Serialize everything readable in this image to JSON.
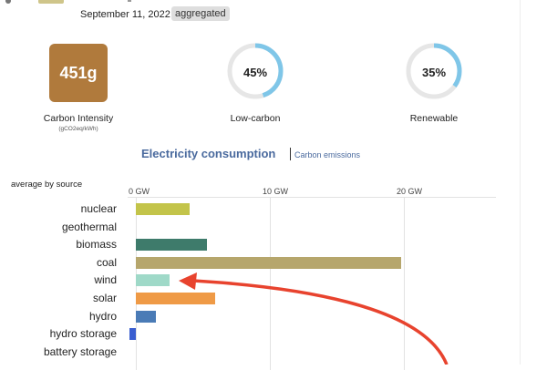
{
  "header": {
    "date": "September 11, 2022",
    "badge": "aggregated"
  },
  "stats": {
    "carbon_intensity": {
      "value": "451g",
      "label": "Carbon Intensity",
      "unit": "(gCO2eq/kWh)",
      "color": "#b07a3c"
    },
    "low_carbon": {
      "value": "45%",
      "label": "Low-carbon",
      "percent": 45
    },
    "renewable": {
      "value": "35%",
      "label": "Renewable",
      "percent": 35
    }
  },
  "chart_header": {
    "title": "Electricity consumption",
    "link": "Carbon emissions",
    "subtitle": "average by source"
  },
  "chart_data": {
    "type": "bar",
    "orientation": "horizontal",
    "title": "Electricity consumption",
    "xlabel": "",
    "ylabel": "",
    "xlim": [
      0,
      26.5
    ],
    "ticks": [
      "0 GW",
      "10 GW",
      "20 GW"
    ],
    "tick_values": [
      0,
      10,
      20
    ],
    "categories": [
      "nuclear",
      "geothermal",
      "biomass",
      "coal",
      "wind",
      "solar",
      "hydro",
      "hydro storage",
      "battery storage"
    ],
    "values": [
      4.0,
      0,
      5.3,
      19.8,
      2.5,
      5.9,
      1.5,
      -0.5,
      0
    ],
    "colors": [
      "#c3c44a",
      "#cccccc",
      "#3e7b6b",
      "#b6a66c",
      "#9fd9c8",
      "#ef9a46",
      "#4a7bb6",
      "#3a5ed0",
      "#aaaaaa"
    ]
  },
  "annotation": {
    "arrow_color": "#e8432e",
    "target": "wind"
  }
}
